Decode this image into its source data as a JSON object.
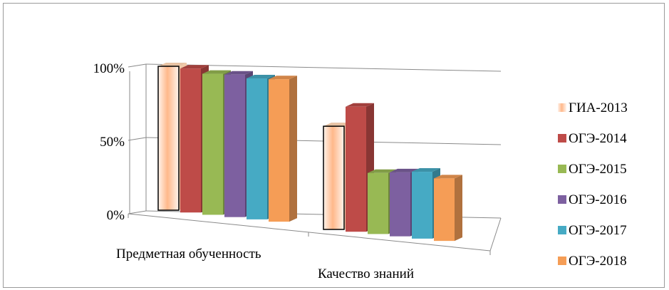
{
  "chart_data": {
    "type": "bar",
    "categories": [
      "Предметная обученность",
      "Качество знаний"
    ],
    "series": [
      {
        "name": "ГИА-2013",
        "values": [
          99,
          71
        ],
        "color": "#ffd5b0"
      },
      {
        "name": "ОГЭ-2014",
        "values": [
          99,
          86
        ],
        "color": "#be4b48"
      },
      {
        "name": "ОГЭ-2015",
        "values": [
          97,
          42
        ],
        "color": "#98b954"
      },
      {
        "name": "ОГЭ-2016",
        "values": [
          98,
          44
        ],
        "color": "#7d60a0"
      },
      {
        "name": "ОГЭ-2017",
        "values": [
          97,
          46
        ],
        "color": "#46aac4"
      },
      {
        "name": "ОГЭ-2018",
        "values": [
          98,
          43
        ],
        "color": "#f59d56"
      }
    ],
    "yticks": [
      "0%",
      "50%",
      "100%"
    ],
    "ylim": [
      0,
      100
    ],
    "legend_position": "right",
    "grid": true
  }
}
